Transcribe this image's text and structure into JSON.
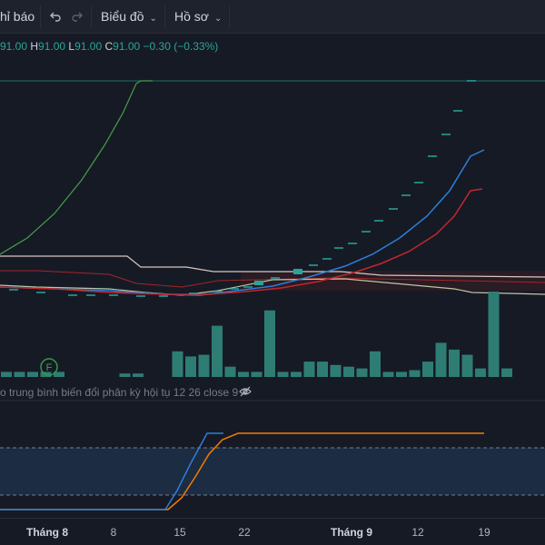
{
  "toolbar": {
    "indicators_label": "hỉ báo",
    "undo_icon": "undo-icon",
    "redo_icon": "redo-icon",
    "chart_menu_label": "Biểu đồ",
    "profile_menu_label": "Hồ sơ"
  },
  "ohlc": {
    "o_value": "91.00",
    "h_key": "H",
    "h_value": "91.00",
    "l_key": "L",
    "l_value": "91.00",
    "c_key": "C",
    "c_value": "91.00",
    "change": "−0.30 (−0.33%)"
  },
  "indicator": {
    "macd_label": "o trung bình biến đổi phân kỳ hội tụ 12 26 close 9",
    "visibility_icon": "eye-off-icon"
  },
  "event_marker": {
    "label": "F"
  },
  "time_axis": {
    "ticks": [
      {
        "label": "Tháng 8",
        "bold": true
      },
      {
        "label": "8",
        "bold": false
      },
      {
        "label": "15",
        "bold": false
      },
      {
        "label": "22",
        "bold": false
      },
      {
        "label": "Tháng 9",
        "bold": true
      },
      {
        "label": "12",
        "bold": false
      },
      {
        "label": "19",
        "bold": false
      }
    ]
  },
  "colors": {
    "background": "#161a25",
    "up_green": "#26a69a",
    "volume_teal": "#2e7d74",
    "ma_blue": "#2f7ed8",
    "ma_red": "#c1272d",
    "line_green": "#43a047",
    "macd_orange": "#f57c00",
    "macd_blue": "#2f7ed8"
  },
  "chart_data": {
    "type": "bar",
    "title": "",
    "series": [
      {
        "name": "",
        "values": [
          3,
          3,
          3,
          3,
          3,
          0,
          0,
          0,
          0,
          2,
          2,
          0,
          0,
          15,
          12,
          13,
          30,
          6,
          3,
          3,
          39,
          3,
          3,
          9,
          9,
          7,
          6,
          5,
          15,
          3,
          3,
          4,
          9,
          20,
          16,
          13,
          5,
          50,
          5
        ]
      }
    ],
    "xlabel": "",
    "ylabel": ""
  }
}
